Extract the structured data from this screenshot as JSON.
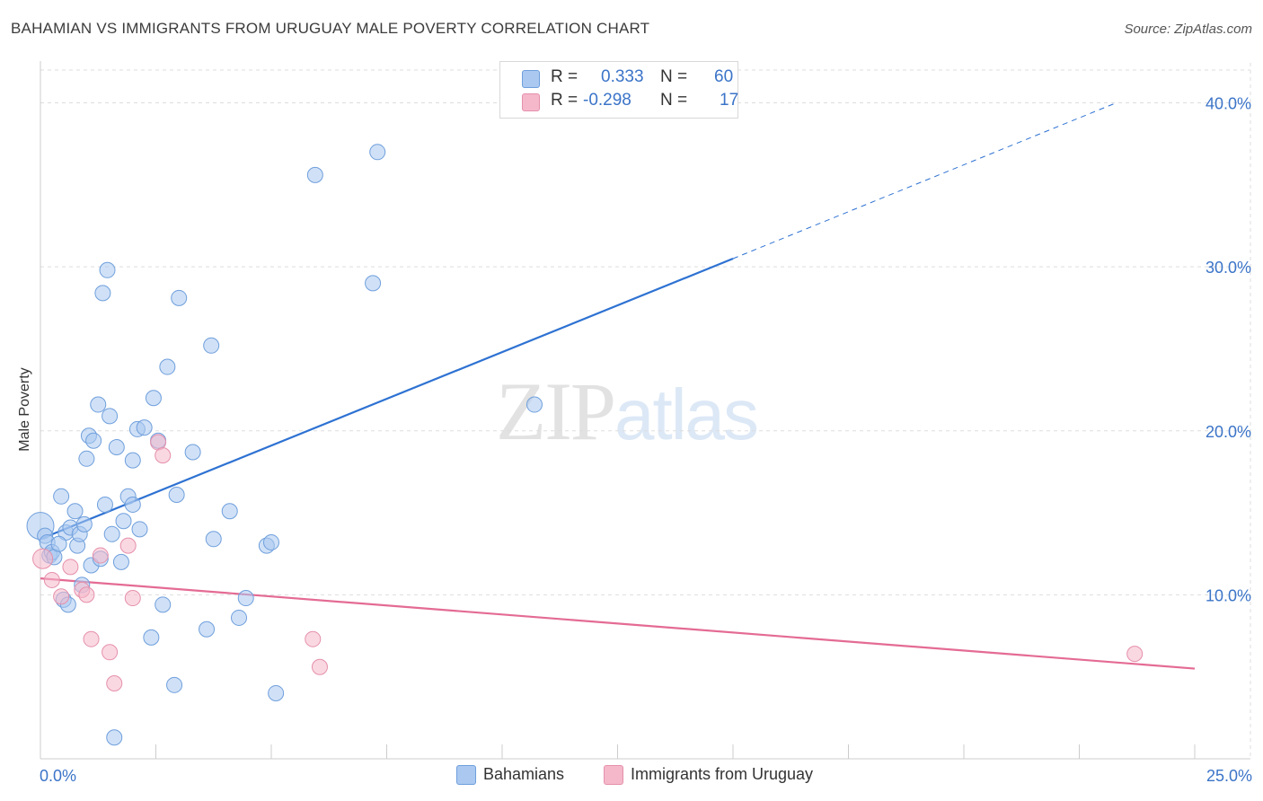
{
  "title": "BAHAMIAN VS IMMIGRANTS FROM URUGUAY MALE POVERTY CORRELATION CHART",
  "source": "Source: ZipAtlas.com",
  "watermark": {
    "part1": "ZIP",
    "part2": "atlas"
  },
  "legend": {
    "rows": [
      {
        "r_label": "R =",
        "r_value": "0.333",
        "n_label": "N =",
        "n_value": "60",
        "color": "#aac8f0"
      },
      {
        "r_label": "R =",
        "r_value": "-0.298",
        "n_label": "N =",
        "n_value": "17",
        "color": "#f5b8cb"
      }
    ]
  },
  "bottom_legend": [
    {
      "label": "Bahamians",
      "color": "#aac8f0"
    },
    {
      "label": "Immigrants from Uruguay",
      "color": "#f5b8cb"
    }
  ],
  "colors": {
    "blue_fill": "#aac8f0",
    "blue_stroke": "#6f9fdc",
    "blue_line": "#2e72d2",
    "pink_fill": "#f5b8cb",
    "pink_stroke": "#e590ab",
    "pink_line": "#e46b94",
    "axis_text": "#3b74c8",
    "grid": "#dddddd"
  },
  "chart_data": {
    "type": "scatter",
    "title": "BAHAMIAN VS IMMIGRANTS FROM URUGUAY MALE POVERTY CORRELATION CHART",
    "xlabel": "",
    "ylabel": "Male Poverty",
    "xlim": [
      0,
      25
    ],
    "ylim": [
      0,
      42
    ],
    "x_tick_labels": [
      "0.0%",
      "25.0%"
    ],
    "y_ticks": [
      10,
      20,
      30,
      40
    ],
    "y_tick_labels": [
      "10.0%",
      "20.0%",
      "30.0%",
      "40.0%"
    ],
    "grid": true,
    "series": [
      {
        "name": "Bahamians",
        "R": 0.333,
        "N": 60,
        "points": [
          [
            0.0,
            14.2
          ],
          [
            0.1,
            13.6
          ],
          [
            0.15,
            13.2
          ],
          [
            0.2,
            12.4
          ],
          [
            0.25,
            12.6
          ],
          [
            0.3,
            12.3
          ],
          [
            0.45,
            16.0
          ],
          [
            0.5,
            9.7
          ],
          [
            0.55,
            13.8
          ],
          [
            0.6,
            9.4
          ],
          [
            0.65,
            14.1
          ],
          [
            0.75,
            15.1
          ],
          [
            0.8,
            13.0
          ],
          [
            0.85,
            13.7
          ],
          [
            0.9,
            10.6
          ],
          [
            0.95,
            14.3
          ],
          [
            1.0,
            18.3
          ],
          [
            1.05,
            19.7
          ],
          [
            1.1,
            11.8
          ],
          [
            1.15,
            19.4
          ],
          [
            1.25,
            21.6
          ],
          [
            1.3,
            12.2
          ],
          [
            1.35,
            28.4
          ],
          [
            1.4,
            15.5
          ],
          [
            1.45,
            29.8
          ],
          [
            1.5,
            20.9
          ],
          [
            1.55,
            13.7
          ],
          [
            1.65,
            19.0
          ],
          [
            1.75,
            12.0
          ],
          [
            1.8,
            14.5
          ],
          [
            1.9,
            16.0
          ],
          [
            2.0,
            18.2
          ],
          [
            2.1,
            20.1
          ],
          [
            2.15,
            14.0
          ],
          [
            2.25,
            20.2
          ],
          [
            2.4,
            7.4
          ],
          [
            2.45,
            22.0
          ],
          [
            2.55,
            19.4
          ],
          [
            2.65,
            9.4
          ],
          [
            2.75,
            23.9
          ],
          [
            2.9,
            4.5
          ],
          [
            2.95,
            16.1
          ],
          [
            3.0,
            28.1
          ],
          [
            3.3,
            18.7
          ],
          [
            3.6,
            7.9
          ],
          [
            3.7,
            25.2
          ],
          [
            3.75,
            13.4
          ],
          [
            4.1,
            15.1
          ],
          [
            4.3,
            8.6
          ],
          [
            4.45,
            9.8
          ],
          [
            4.9,
            13.0
          ],
          [
            5.0,
            13.2
          ],
          [
            5.1,
            4.0
          ],
          [
            5.95,
            35.6
          ],
          [
            7.2,
            29.0
          ],
          [
            7.3,
            37.0
          ],
          [
            10.7,
            21.6
          ],
          [
            1.6,
            1.3
          ],
          [
            0.4,
            13.1
          ],
          [
            2.0,
            15.5
          ]
        ],
        "trend": {
          "solid": [
            [
              0.0,
              13.4
            ],
            [
              15.0,
              30.5
            ]
          ],
          "dashed": [
            [
              15.0,
              30.5
            ],
            [
              23.3,
              40.0
            ]
          ]
        }
      },
      {
        "name": "Immigrants from Uruguay",
        "R": -0.298,
        "N": 17,
        "points": [
          [
            0.05,
            12.2
          ],
          [
            0.25,
            10.9
          ],
          [
            0.45,
            9.9
          ],
          [
            0.65,
            11.7
          ],
          [
            0.9,
            10.3
          ],
          [
            1.0,
            10.0
          ],
          [
            1.1,
            7.3
          ],
          [
            1.3,
            12.4
          ],
          [
            1.5,
            6.5
          ],
          [
            1.6,
            4.6
          ],
          [
            1.9,
            13.0
          ],
          [
            2.0,
            9.8
          ],
          [
            2.55,
            19.3
          ],
          [
            2.65,
            18.5
          ],
          [
            5.9,
            7.3
          ],
          [
            6.05,
            5.6
          ],
          [
            23.7,
            6.4
          ]
        ],
        "trend": {
          "solid": [
            [
              0.0,
              11.0
            ],
            [
              25.0,
              5.5
            ]
          ]
        }
      }
    ]
  }
}
